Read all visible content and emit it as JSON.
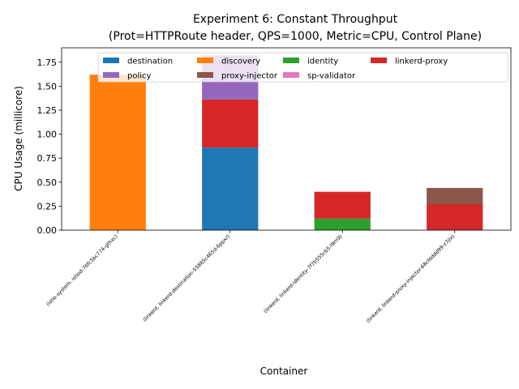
{
  "chart_data": {
    "type": "bar",
    "stacked": true,
    "title_line1": "Experiment 6: Constant Throughput",
    "title_line2": "(Prot=HTTPRoute header, QPS=1000, Metric=CPU, Control Plane)",
    "xlabel": "Container",
    "ylabel": "CPU Usage (millicore)",
    "ylim": [
      0,
      1.9
    ],
    "yticks": [
      0.0,
      0.25,
      0.5,
      0.75,
      1.0,
      1.25,
      1.5,
      1.75
    ],
    "ytick_labels": [
      "0.00",
      "0.25",
      "0.50",
      "0.75",
      "1.00",
      "1.25",
      "1.50",
      "1.75"
    ],
    "grid": false,
    "legend_position": "top-right",
    "legend_columns": 4,
    "categories": [
      "(istio-system, istiod-76fc5bc774-gthxc)",
      "(linkerd, linkerd-destination-55885c465d-6ppxr)",
      "(linkerd, linkerd-identity-7f7b555cb5-l9rn9)",
      "(linkerd, linkerd-proxy-injector-68cfdddd99-z7jlx)"
    ],
    "series": [
      {
        "name": "destination",
        "color": "#1f77b4",
        "values": [
          0,
          0.86,
          0,
          0
        ]
      },
      {
        "name": "discovery",
        "color": "#ff7f0e",
        "values": [
          1.62,
          0,
          0,
          0
        ]
      },
      {
        "name": "identity",
        "color": "#2ca02c",
        "values": [
          0,
          0,
          0.12,
          0
        ]
      },
      {
        "name": "linkerd-proxy",
        "color": "#d62728",
        "values": [
          0,
          0.5,
          0.28,
          0.27
        ]
      },
      {
        "name": "policy",
        "color": "#9467bd",
        "values": [
          0,
          0.46,
          0,
          0
        ]
      },
      {
        "name": "proxy-injector",
        "color": "#8c564b",
        "values": [
          0,
          0,
          0,
          0.17
        ]
      },
      {
        "name": "sp-validator",
        "color": "#e377c2",
        "values": [
          0,
          0,
          0,
          0
        ]
      }
    ]
  }
}
